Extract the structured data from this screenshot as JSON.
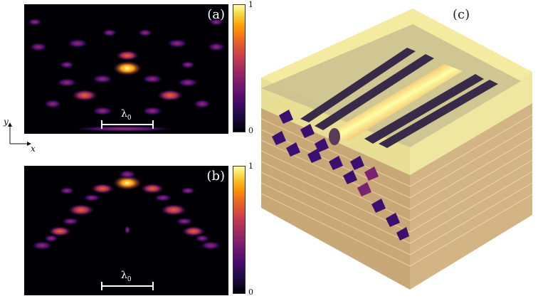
{
  "panels": {
    "a": {
      "label": "(a)",
      "scale_label": "λ0"
    },
    "b": {
      "label": "(b)",
      "scale_label": "λ0"
    },
    "c": {
      "label": "(c)"
    }
  },
  "colorbar": {
    "max_label": "1",
    "min_label": "0",
    "colormap": "inferno"
  },
  "axes": {
    "x_label": "x",
    "y_label": "y"
  },
  "colors": {
    "background": "#000004",
    "hot": "#fcffa4",
    "mid": "#ed6925",
    "cool": "#4a0c6b",
    "slab_top": "#c9c08f",
    "slab_side": "#c8a877",
    "cover": "#f4eaa0"
  }
}
